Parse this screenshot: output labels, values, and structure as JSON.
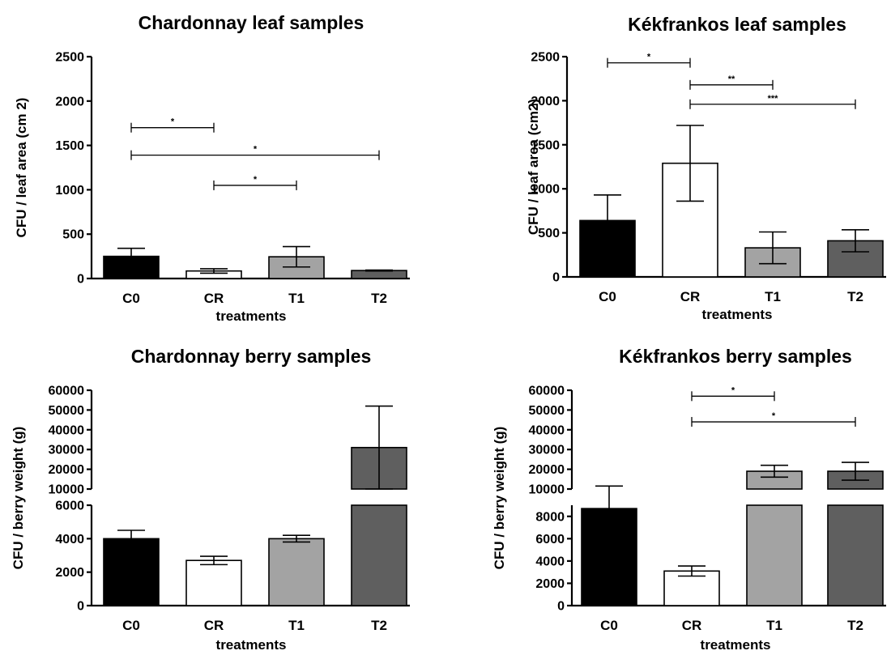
{
  "colors": {
    "C0": "#000000",
    "CR": "#ffffff",
    "T1": "#a3a3a3",
    "T2": "#5f5f5f"
  },
  "chart_data": [
    {
      "type": "bar",
      "title": "Chardonnay leaf samples",
      "xlabel": "treatments",
      "ylabel": "CFU / leaf area (cm 2)",
      "categories": [
        "C0",
        "CR",
        "T1",
        "T2"
      ],
      "values": [
        250,
        85,
        245,
        90
      ],
      "errors": [
        90,
        25,
        115,
        5
      ],
      "ylim": [
        0,
        2500
      ],
      "yticks": [
        "0",
        "500",
        "1000",
        "1500",
        "2000",
        "2500"
      ],
      "significance": [
        {
          "from": "C0",
          "to": "CR",
          "level": 1700,
          "label": "*"
        },
        {
          "from": "C0",
          "to": "T2",
          "level": 1390,
          "label": "*"
        },
        {
          "from": "CR",
          "to": "T1",
          "level": 1050,
          "label": "*"
        }
      ]
    },
    {
      "type": "bar",
      "title": "Kékfrankos leaf samples",
      "xlabel": "treatments",
      "ylabel": "CFU / leaf area (cm2)",
      "categories": [
        "C0",
        "CR",
        "T1",
        "T2"
      ],
      "values": [
        640,
        1290,
        330,
        410
      ],
      "errors": [
        290,
        430,
        180,
        125
      ],
      "ylim": [
        0,
        2500
      ],
      "yticks": [
        "0",
        "500",
        "1000",
        "1500",
        "2000",
        "2500"
      ],
      "significance": [
        {
          "from": "C0",
          "to": "CR",
          "level": 2430,
          "label": "*"
        },
        {
          "from": "CR",
          "to": "T1",
          "level": 2180,
          "label": "**"
        },
        {
          "from": "CR",
          "to": "T2",
          "level": 1960,
          "label": "***"
        }
      ]
    },
    {
      "type": "bar",
      "title": "Chardonnay berry samples",
      "xlabel": "treatments",
      "ylabel": "CFU / berry weight (g)",
      "categories": [
        "C0",
        "CR",
        "T1",
        "T2"
      ],
      "values": [
        4000,
        2700,
        4000,
        31000
      ],
      "errors": [
        500,
        250,
        200,
        21000
      ],
      "axis_break": {
        "lower": [
          0,
          6000
        ],
        "upper": [
          10000,
          60000
        ]
      },
      "yticks_lower": [
        "0",
        "2000",
        "4000",
        "6000"
      ],
      "yticks_upper": [
        "10000",
        "20000",
        "30000",
        "40000",
        "50000",
        "60000"
      ],
      "significance": []
    },
    {
      "type": "bar",
      "title": "Kékfrankos berry samples",
      "xlabel": "treatments",
      "ylabel": "CFU / berry weight (g)",
      "categories": [
        "C0",
        "CR",
        "T1",
        "T2"
      ],
      "values": [
        8700,
        3100,
        19000,
        19000
      ],
      "errors": [
        2800,
        450,
        3000,
        4500
      ],
      "axis_break": {
        "lower": [
          0,
          9000
        ],
        "upper": [
          10000,
          60000
        ]
      },
      "yticks_lower": [
        "0",
        "2000",
        "4000",
        "6000",
        "8000"
      ],
      "yticks_upper": [
        "10000",
        "20000",
        "30000",
        "40000",
        "50000",
        "60000"
      ],
      "significance": [
        {
          "from": "CR",
          "to": "T1",
          "level": 57000,
          "label": "*"
        },
        {
          "from": "CR",
          "to": "T2",
          "level": 44000,
          "label": "*"
        }
      ]
    }
  ]
}
